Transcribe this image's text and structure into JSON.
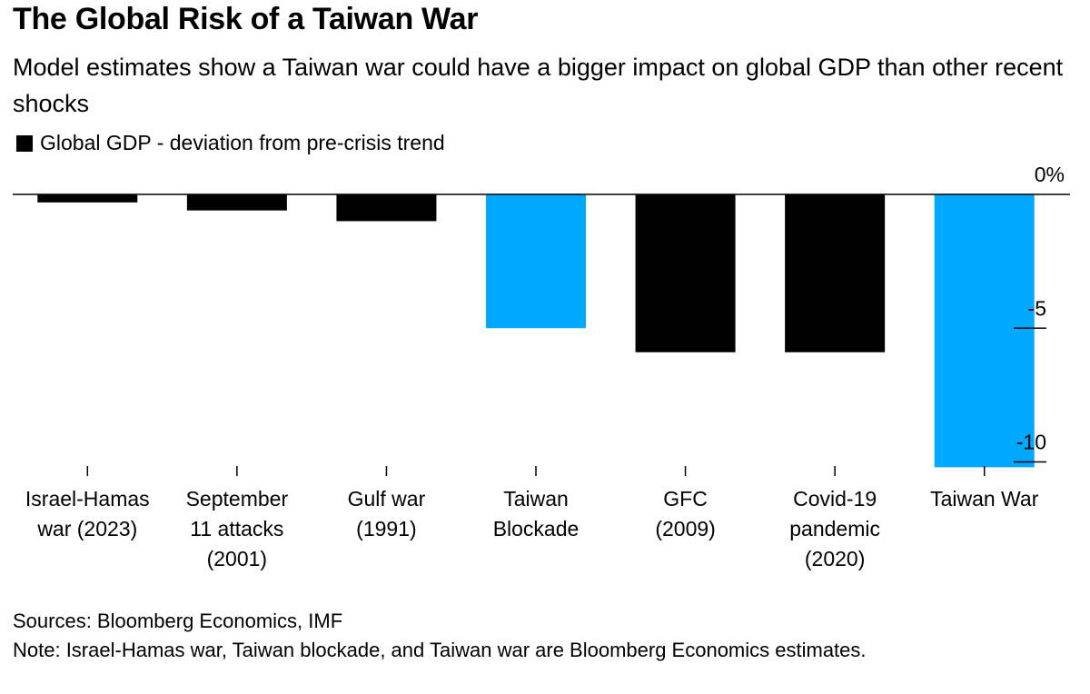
{
  "header": {
    "title": "The Global Risk of a Taiwan War",
    "subtitle": "Model estimates show a Taiwan war could have a bigger impact on global GDP than other recent shocks"
  },
  "legend": {
    "label": "Global GDP - deviation from pre-crisis trend",
    "color": "#000000"
  },
  "chart_data": {
    "type": "bar",
    "categories": [
      [
        "Israel-Hamas",
        "war (2023)"
      ],
      [
        "September",
        "11 attacks",
        "(2001)"
      ],
      [
        "Gulf war",
        "(1991)"
      ],
      [
        "Taiwan",
        "Blockade"
      ],
      [
        "GFC",
        "(2009)"
      ],
      [
        "Covid-19",
        "pandemic",
        "(2020)"
      ],
      [
        "Taiwan War"
      ]
    ],
    "series": [
      {
        "name": "Global GDP - deviation from pre-crisis trend",
        "values": [
          -0.3,
          -0.6,
          -1.0,
          -5.0,
          -5.9,
          -5.9,
          -10.2
        ]
      }
    ],
    "bar_colors": [
      "#000000",
      "#000000",
      "#000000",
      "#00A8FF",
      "#000000",
      "#000000",
      "#00A8FF"
    ],
    "y_ticks": [
      {
        "value": 0,
        "label": "0%"
      },
      {
        "value": -5,
        "label": "-5"
      },
      {
        "value": -10,
        "label": "-10"
      }
    ],
    "ylim": [
      -10.2,
      0
    ],
    "y_axis_side": "right",
    "grid": false
  },
  "footer": {
    "sources": "Sources: Bloomberg Economics, IMF",
    "note": "Note: Israel-Hamas war, Taiwan blockade, and Taiwan war are Bloomberg Economics estimates."
  }
}
